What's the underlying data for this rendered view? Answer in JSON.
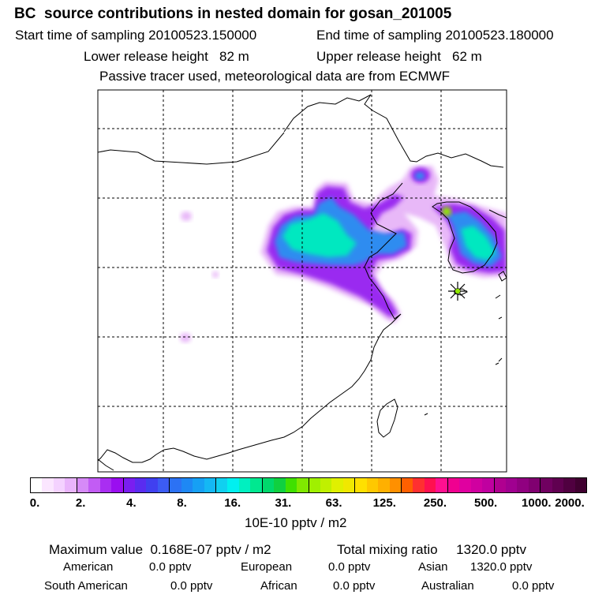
{
  "header": {
    "title": "BC  source contributions in nested domain for gosan_201005",
    "start_time": "Start time of sampling 20100523.150000",
    "end_time": "End time of sampling 20100523.180000",
    "lower_release": "Lower release height   82 m",
    "upper_release": "Upper release height   62 m",
    "note": "Passive tracer used, meteorological data are from ECMWF"
  },
  "map": {
    "receptor_marker": "star-icon",
    "colors": {
      "low": "#e8b8f8",
      "mid": "#9a2cf0",
      "high": "#2f8cf0",
      "peak": "#00e8c0",
      "top": "#90e800"
    }
  },
  "colorbar": {
    "ticks": [
      "0.",
      "2.",
      "4.",
      "8.",
      "16.",
      "31.",
      "63.",
      "125.",
      "250.",
      "500.",
      "1000.",
      "2000."
    ],
    "colors": [
      "#ffffff",
      "#fbe6ff",
      "#f4d2ff",
      "#e9b4fb",
      "#d68af7",
      "#c25cf4",
      "#a92ef2",
      "#9a0ef0",
      "#7a1ef0",
      "#5a2cf0",
      "#4040f0",
      "#3c5cf4",
      "#2c72f4",
      "#1e88f4",
      "#16a0f4",
      "#14b8f4",
      "#10d0f0",
      "#00f0f0",
      "#00f0c0",
      "#00e890",
      "#00d86c",
      "#10d040",
      "#40e000",
      "#80e800",
      "#a0f000",
      "#c0f000",
      "#e0f000",
      "#f0e800",
      "#ffe000",
      "#ffc800",
      "#ffb000",
      "#ff9000",
      "#ff6000",
      "#ff3030",
      "#ff1050",
      "#ff1090",
      "#f00090",
      "#e000a0",
      "#d000a0",
      "#c000a0",
      "#b00090",
      "#a00090",
      "#900080",
      "#800070",
      "#700060",
      "#600050",
      "#500040",
      "#400030"
    ],
    "units": "10E-10 pptv / m2"
  },
  "summary": {
    "maximum_value": "Maximum value  0.168E-07 pptv / m2",
    "total_mixing": "Total mixing ratio     1320.0 pptv",
    "rows": [
      [
        {
          "name": "American",
          "value": "0.0 pptv"
        },
        {
          "name": "European",
          "value": "0.0 pptv"
        },
        {
          "name": "Asian",
          "value": "1320.0 pptv"
        }
      ],
      [
        {
          "name": "South American",
          "value": "0.0 pptv"
        },
        {
          "name": "African",
          "value": "0.0 pptv"
        },
        {
          "name": "Australian",
          "value": "0.0 pptv"
        }
      ]
    ]
  }
}
